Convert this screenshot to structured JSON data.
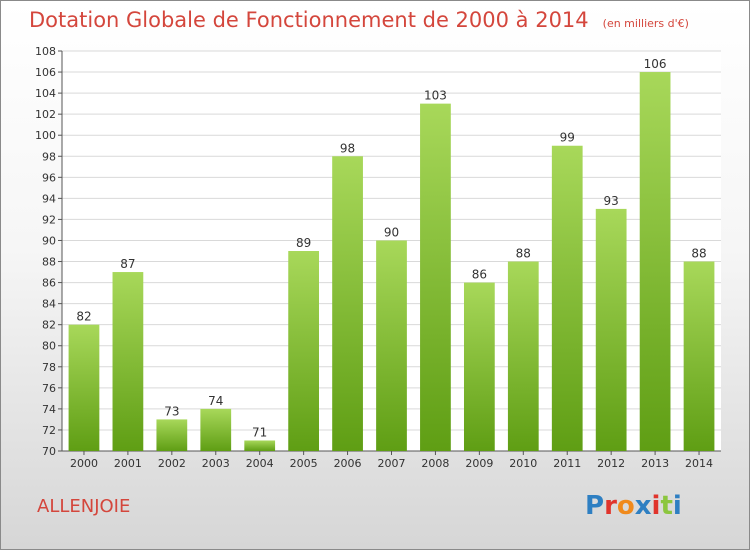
{
  "header": {
    "title": "Dotation Globale de Fonctionnement de 2000 à 2014",
    "unit": "(en milliers d'€)"
  },
  "footer": {
    "commune": "ALLENJOIE",
    "logo_text": "Proxiti",
    "logo_colors": [
      "#2e7fc2",
      "#e0342c",
      "#f08a1c",
      "#2e7fc2",
      "#e0342c",
      "#8cc63f",
      "#2e7fc2"
    ]
  },
  "colors": {
    "bar_top": "#a8d85a",
    "bar_bottom": "#5f9e14",
    "text_accent": "#d4463c",
    "grid": "#d9d9d9",
    "axis": "#555555"
  },
  "chart_data": {
    "type": "bar",
    "title": "Dotation Globale de Fonctionnement de 2000 à 2014",
    "subtitle": "(en milliers d'€)",
    "xlabel": "",
    "ylabel": "",
    "categories": [
      "2000",
      "2001",
      "2002",
      "2003",
      "2004",
      "2005",
      "2006",
      "2007",
      "2008",
      "2009",
      "2010",
      "2011",
      "2012",
      "2013",
      "2014"
    ],
    "values": [
      82,
      87,
      73,
      74,
      71,
      89,
      98,
      90,
      103,
      86,
      88,
      99,
      93,
      106,
      88
    ],
    "ylim": [
      70,
      108
    ],
    "ytick_step": 2,
    "grid": true,
    "legend": "none"
  }
}
